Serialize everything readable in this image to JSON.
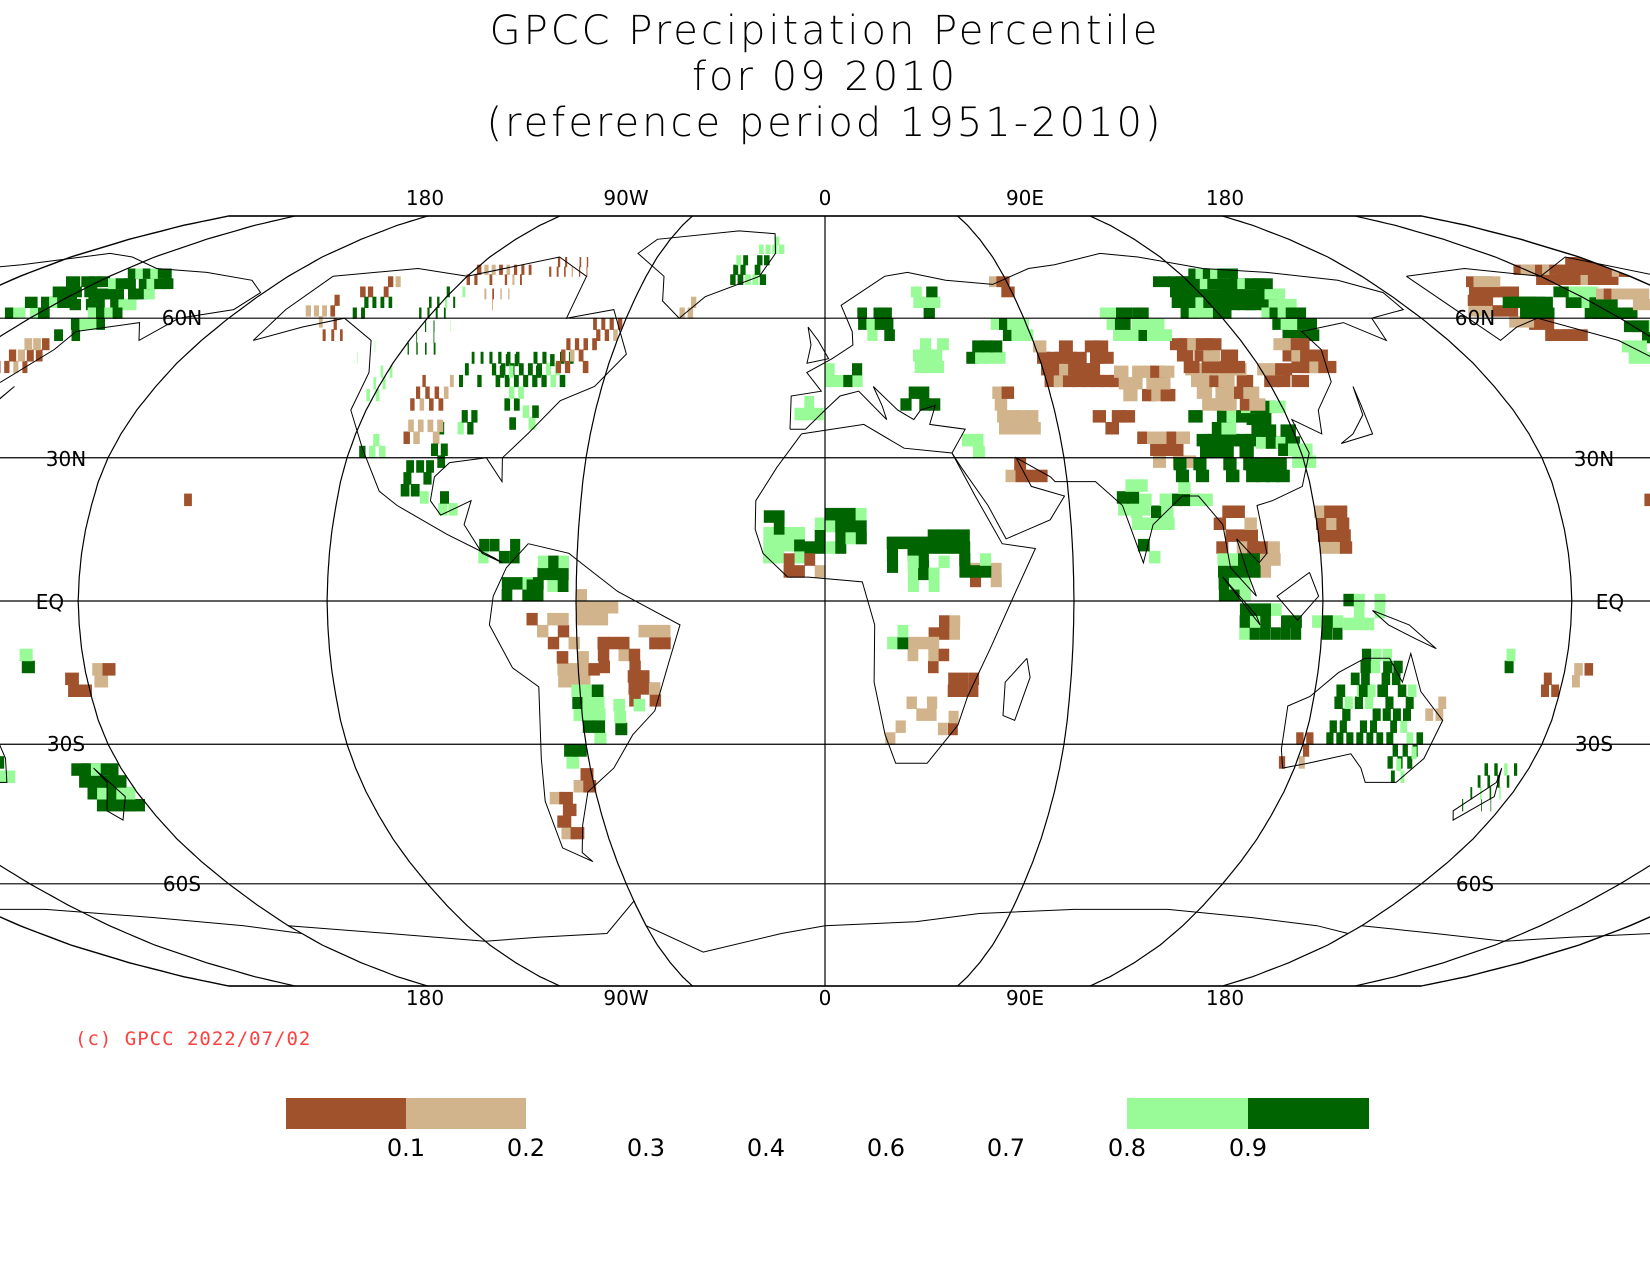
{
  "title": {
    "line1": "GPCC Precipitation Percentile",
    "line2": "for 09 2010",
    "line3": "(reference period 1951-2010)"
  },
  "map": {
    "projection": "Robinson",
    "longitude_labels": [
      "180",
      "90W",
      "0",
      "90E",
      "180"
    ],
    "latitude_labels_left": [
      "60N",
      "30N",
      "EQ",
      "30S",
      "60S"
    ],
    "latitude_labels_right": [
      "60N",
      "30N",
      "EQ",
      "30S",
      "60S"
    ]
  },
  "copyright": "(c) GPCC 2022/07/02",
  "legend": {
    "tick_labels": [
      "0.1",
      "0.2",
      "0.3",
      "0.4",
      "0.6",
      "0.7",
      "0.8",
      "0.9"
    ],
    "colors": {
      "below_0.1": "#a0522d",
      "0.1_0.2": "#d2b48c",
      "0.8_0.9": "#98fb98",
      "above_0.9": "#006400"
    }
  }
}
